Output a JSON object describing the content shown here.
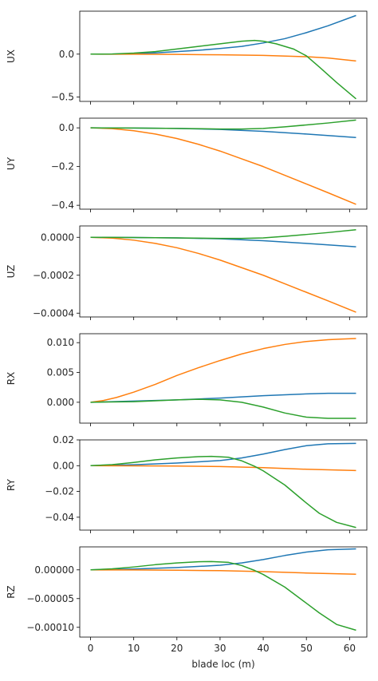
{
  "chart_data": [
    {
      "type": "line",
      "ylabel": "UX",
      "xlabel": "",
      "xlim": [
        -2.5,
        64
      ],
      "ylim": [
        -0.55,
        0.5
      ],
      "xticks": [
        0,
        10,
        20,
        30,
        40,
        50,
        60
      ],
      "xtick_labels": [
        "",
        "",
        "",
        "",
        "",
        "",
        ""
      ],
      "yticks": [
        -0.5,
        0.0
      ],
      "ytick_labels": [
        "−0.5",
        "0.0"
      ],
      "series": [
        {
          "color": "#1f77b4",
          "x": [
            0,
            5,
            10,
            15,
            20,
            25,
            30,
            35,
            40,
            45,
            50,
            55,
            61.5
          ],
          "y": [
            0,
            0,
            0.005,
            0.015,
            0.03,
            0.045,
            0.065,
            0.09,
            0.13,
            0.18,
            0.25,
            0.33,
            0.45
          ]
        },
        {
          "color": "#ff7f0e",
          "x": [
            0,
            10,
            20,
            30,
            40,
            50,
            55,
            61.5
          ],
          "y": [
            0,
            -0.001,
            -0.003,
            -0.008,
            -0.015,
            -0.03,
            -0.045,
            -0.08
          ]
        },
        {
          "color": "#2ca02c",
          "x": [
            0,
            5,
            10,
            15,
            20,
            25,
            30,
            35,
            38,
            40,
            43,
            47,
            50,
            53,
            57,
            61.5
          ],
          "y": [
            0,
            0.002,
            0.012,
            0.03,
            0.06,
            0.09,
            0.12,
            0.15,
            0.16,
            0.15,
            0.12,
            0.06,
            -0.02,
            -0.15,
            -0.33,
            -0.52
          ]
        }
      ]
    },
    {
      "type": "line",
      "ylabel": "UY",
      "xlabel": "",
      "xlim": [
        -2.5,
        64
      ],
      "ylim": [
        -0.42,
        0.05
      ],
      "xticks": [
        0,
        10,
        20,
        30,
        40,
        50,
        60
      ],
      "xtick_labels": [
        "",
        "",
        "",
        "",
        "",
        "",
        ""
      ],
      "yticks": [
        -0.4,
        -0.2,
        0.0
      ],
      "ytick_labels": [
        "−0.4",
        "−0.2",
        "0.0"
      ],
      "series": [
        {
          "color": "#1f77b4",
          "x": [
            0,
            10,
            20,
            30,
            40,
            50,
            61.5
          ],
          "y": [
            0,
            -0.001,
            -0.003,
            -0.008,
            -0.018,
            -0.032,
            -0.05
          ]
        },
        {
          "color": "#ff7f0e",
          "x": [
            0,
            5,
            10,
            15,
            20,
            25,
            30,
            35,
            40,
            45,
            50,
            55,
            61.5
          ],
          "y": [
            0,
            -0.004,
            -0.015,
            -0.032,
            -0.055,
            -0.085,
            -0.12,
            -0.16,
            -0.2,
            -0.245,
            -0.29,
            -0.335,
            -0.395
          ]
        },
        {
          "color": "#2ca02c",
          "x": [
            0,
            10,
            20,
            30,
            35,
            40,
            45,
            50,
            55,
            61.5
          ],
          "y": [
            0,
            -0.001,
            -0.003,
            -0.006,
            -0.006,
            -0.003,
            0.005,
            0.015,
            0.025,
            0.04
          ]
        }
      ]
    },
    {
      "type": "line",
      "ylabel": "UZ",
      "xlabel": "",
      "xlim": [
        -2.5,
        64
      ],
      "ylim": [
        -0.00042,
        6e-05
      ],
      "xticks": [
        0,
        10,
        20,
        30,
        40,
        50,
        60
      ],
      "xtick_labels": [
        "",
        "",
        "",
        "",
        "",
        "",
        ""
      ],
      "yticks": [
        -0.0004,
        -0.0002,
        0.0
      ],
      "ytick_labels": [
        "−0.0004",
        "−0.0002",
        "0.0000"
      ],
      "series": [
        {
          "color": "#1f77b4",
          "x": [
            0,
            10,
            20,
            30,
            40,
            50,
            61.5
          ],
          "y": [
            0,
            -1e-06,
            -3e-06,
            -8e-06,
            -1.8e-05,
            -3.2e-05,
            -5e-05
          ]
        },
        {
          "color": "#ff7f0e",
          "x": [
            0,
            5,
            10,
            15,
            20,
            25,
            30,
            35,
            40,
            45,
            50,
            55,
            61.5
          ],
          "y": [
            0,
            -4e-06,
            -1.5e-05,
            -3.2e-05,
            -5.5e-05,
            -8.5e-05,
            -0.00012,
            -0.00016,
            -0.0002,
            -0.000245,
            -0.00029,
            -0.000335,
            -0.000395
          ]
        },
        {
          "color": "#2ca02c",
          "x": [
            0,
            10,
            20,
            30,
            35,
            40,
            45,
            50,
            55,
            61.5
          ],
          "y": [
            0,
            -1e-06,
            -3e-06,
            -6e-06,
            -6e-06,
            -3e-06,
            5e-06,
            1.5e-05,
            2.5e-05,
            4e-05
          ]
        }
      ]
    },
    {
      "type": "line",
      "ylabel": "RX",
      "xlabel": "",
      "xlim": [
        -2.5,
        64
      ],
      "ylim": [
        -0.0035,
        0.0115
      ],
      "xticks": [
        0,
        10,
        20,
        30,
        40,
        50,
        60
      ],
      "xtick_labels": [
        "",
        "",
        "",
        "",
        "",
        "",
        ""
      ],
      "yticks": [
        0.0,
        0.005,
        0.01
      ],
      "ytick_labels": [
        "0.000",
        "0.005",
        "0.010"
      ],
      "series": [
        {
          "color": "#1f77b4",
          "x": [
            0,
            10,
            20,
            30,
            40,
            50,
            55,
            61.5
          ],
          "y": [
            0,
            0.0002,
            0.0004,
            0.0007,
            0.0011,
            0.0014,
            0.0015,
            0.0015
          ]
        },
        {
          "color": "#ff7f0e",
          "x": [
            0,
            3,
            6,
            10,
            15,
            20,
            25,
            30,
            35,
            40,
            45,
            50,
            55,
            58,
            61.5
          ],
          "y": [
            0,
            0.0003,
            0.0008,
            0.0017,
            0.003,
            0.0045,
            0.0058,
            0.007,
            0.0081,
            0.009,
            0.0097,
            0.0102,
            0.0105,
            0.0106,
            0.0107
          ]
        },
        {
          "color": "#2ca02c",
          "x": [
            0,
            10,
            20,
            25,
            30,
            35,
            40,
            45,
            50,
            55,
            61.5
          ],
          "y": [
            0,
            0.0001,
            0.0004,
            0.0005,
            0.0004,
            0.0,
            -0.0008,
            -0.0018,
            -0.0025,
            -0.0027,
            -0.0027
          ]
        }
      ]
    },
    {
      "type": "line",
      "ylabel": "RY",
      "xlabel": "",
      "xlim": [
        -2.5,
        64
      ],
      "ylim": [
        -0.05,
        0.02
      ],
      "xticks": [
        0,
        10,
        20,
        30,
        40,
        50,
        60
      ],
      "xtick_labels": [
        "",
        "",
        "",
        "",
        "",
        "",
        ""
      ],
      "yticks": [
        -0.04,
        -0.02,
        0.0,
        0.02
      ],
      "ytick_labels": [
        "−0.04",
        "−0.02",
        "0.00",
        "0.02"
      ],
      "series": [
        {
          "color": "#1f77b4",
          "x": [
            0,
            10,
            20,
            30,
            35,
            40,
            45,
            50,
            55,
            61.5
          ],
          "y": [
            0,
            0.0007,
            0.002,
            0.004,
            0.006,
            0.009,
            0.0125,
            0.0155,
            0.017,
            0.0173
          ]
        },
        {
          "color": "#ff7f0e",
          "x": [
            0,
            10,
            20,
            30,
            40,
            50,
            61.5
          ],
          "y": [
            0,
            -0.0001,
            -0.0003,
            -0.0007,
            -0.0015,
            -0.0028,
            -0.0038
          ]
        },
        {
          "color": "#2ca02c",
          "x": [
            0,
            5,
            10,
            15,
            20,
            25,
            28,
            32,
            35,
            38,
            40,
            45,
            50,
            53,
            57,
            61.5
          ],
          "y": [
            0,
            0.0008,
            0.0025,
            0.0045,
            0.006,
            0.007,
            0.0072,
            0.0065,
            0.0038,
            -0.0005,
            -0.004,
            -0.015,
            -0.029,
            -0.037,
            -0.044,
            -0.048
          ]
        }
      ]
    },
    {
      "type": "line",
      "ylabel": "RZ",
      "xlabel": "blade loc (m)",
      "xlim": [
        -2.5,
        64
      ],
      "ylim": [
        -0.000117,
        4e-05
      ],
      "xticks": [
        0,
        10,
        20,
        30,
        40,
        50,
        60
      ],
      "xtick_labels": [
        "0",
        "10",
        "20",
        "30",
        "40",
        "50",
        "60"
      ],
      "yticks": [
        -0.0001,
        -5e-05,
        0.0
      ],
      "ytick_labels": [
        "−0.00010",
        "−0.00005",
        "0.00000"
      ],
      "series": [
        {
          "color": "#1f77b4",
          "x": [
            0,
            10,
            20,
            30,
            35,
            40,
            45,
            50,
            55,
            61.5
          ],
          "y": [
            0,
            1.5e-06,
            4e-06,
            8e-06,
            1.2e-05,
            1.8e-05,
            2.5e-05,
            3.1e-05,
            3.5e-05,
            3.65e-05
          ]
        },
        {
          "color": "#ff7f0e",
          "x": [
            0,
            10,
            20,
            30,
            40,
            50,
            61.5
          ],
          "y": [
            0,
            -2e-07,
            -6e-07,
            -1.4e-06,
            -3e-06,
            -5.5e-06,
            -7.5e-06
          ]
        },
        {
          "color": "#2ca02c",
          "x": [
            0,
            5,
            10,
            15,
            20,
            25,
            28,
            32,
            35,
            38,
            40,
            45,
            50,
            53,
            57,
            61.5
          ],
          "y": [
            0,
            1.8e-06,
            5e-06,
            9e-06,
            1.2e-05,
            1.42e-05,
            1.45e-05,
            1.3e-05,
            7.6e-06,
            -1e-06,
            -8e-06,
            -3e-05,
            -5.8e-05,
            -7.5e-05,
            -9.5e-05,
            -0.000105
          ]
        }
      ]
    }
  ]
}
